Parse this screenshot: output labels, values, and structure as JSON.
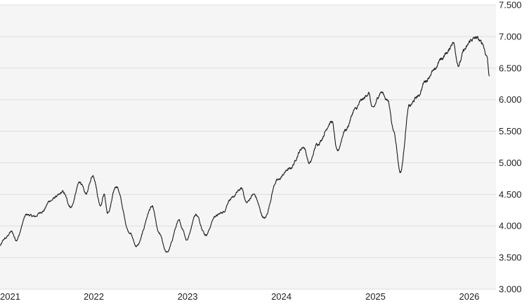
{
  "colors": {
    "plot_background": "#f5f5f5",
    "gridline": "#dedede",
    "price_line": "#1a1a1a",
    "tick_text": "#222222"
  },
  "chart_data": {
    "type": "line",
    "title": "",
    "xlabel": "",
    "ylabel": "",
    "grid": "horizontal",
    "legend": "none",
    "y_axis_side": "right",
    "ylim": [
      3000,
      7500
    ],
    "xlim": [
      "2021-01-01",
      "2026-04-15"
    ],
    "y_ticks": [
      3000,
      3500,
      4000,
      4500,
      5000,
      5500,
      6000,
      6500,
      7000,
      7500
    ],
    "y_tick_labels": [
      "3.000",
      "3.500",
      "4.000",
      "4.500",
      "5.000",
      "5.500",
      "6.000",
      "6.500",
      "7.000",
      "7.500"
    ],
    "x_ticks": [
      "2021-01-01",
      "2022-01-01",
      "2023-01-01",
      "2024-01-01",
      "2025-01-01",
      "2026-01-01"
    ],
    "x_tick_labels": [
      "2021",
      "2022",
      "2023",
      "2024",
      "2025",
      "2026"
    ],
    "series": [
      {
        "x": [
          "2021-01-01",
          "2021-01-20",
          "2021-02-15",
          "2021-03-05",
          "2021-04-15",
          "2021-05-15",
          "2021-06-15",
          "2021-07-15",
          "2021-08-15",
          "2021-09-02",
          "2021-10-04",
          "2021-11-08",
          "2021-12-01",
          "2021-12-29",
          "2022-01-27",
          "2022-02-10",
          "2022-02-24",
          "2022-03-29",
          "2022-05-20",
          "2022-06-16",
          "2022-08-16",
          "2022-09-12",
          "2022-10-12",
          "2022-11-30",
          "2022-12-13",
          "2022-12-28",
          "2023-02-02",
          "2023-03-13",
          "2023-04-20",
          "2023-05-20",
          "2023-06-15",
          "2023-07-31",
          "2023-08-18",
          "2023-09-15",
          "2023-10-27",
          "2023-12-15",
          "2024-01-31",
          "2024-03-28",
          "2024-04-19",
          "2024-05-20",
          "2024-07-16",
          "2024-08-05",
          "2024-09-06",
          "2024-10-15",
          "2024-11-11",
          "2024-12-06",
          "2024-12-20",
          "2025-01-24",
          "2025-02-19",
          "2025-03-13",
          "2025-04-08",
          "2025-05-13",
          "2025-06-15",
          "2025-07-15",
          "2025-08-15",
          "2025-09-15",
          "2025-10-08",
          "2025-10-30",
          "2025-11-20",
          "2025-12-15",
          "2026-01-10",
          "2026-01-28",
          "2026-02-20",
          "2026-03-10",
          "2026-03-20"
        ],
        "values": [
          3690,
          3800,
          3910,
          3780,
          4180,
          4150,
          4230,
          4400,
          4480,
          4540,
          4300,
          4700,
          4510,
          4800,
          4330,
          4500,
          4200,
          4630,
          3900,
          3680,
          4300,
          3880,
          3580,
          4080,
          3950,
          3780,
          4180,
          3860,
          4160,
          4220,
          4420,
          4590,
          4370,
          4500,
          4120,
          4720,
          4900,
          5250,
          4990,
          5300,
          5650,
          5180,
          5520,
          5850,
          6000,
          6100,
          5860,
          6120,
          5980,
          5500,
          4850,
          5900,
          6050,
          6300,
          6450,
          6650,
          6750,
          6910,
          6550,
          6800,
          6950,
          6980,
          6900,
          6700,
          6400
        ]
      }
    ]
  }
}
